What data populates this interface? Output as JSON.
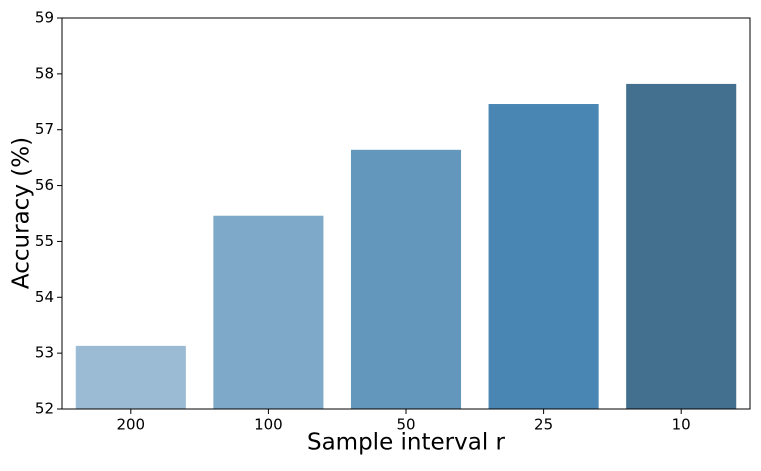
{
  "chart_data": {
    "type": "bar",
    "xlabel": "Sample interval r",
    "ylabel": "Accuracy (%)",
    "categories": [
      "200",
      "100",
      "50",
      "25",
      "10"
    ],
    "values": [
      53.13,
      55.46,
      56.64,
      57.46,
      57.82
    ],
    "colors": [
      "#9bbad4",
      "#7fa9c9",
      "#6497bc",
      "#4a86b3",
      "#43708f"
    ],
    "ylim": [
      52,
      59
    ],
    "yticks": [
      52,
      53,
      54,
      55,
      56,
      57,
      58,
      59
    ]
  }
}
